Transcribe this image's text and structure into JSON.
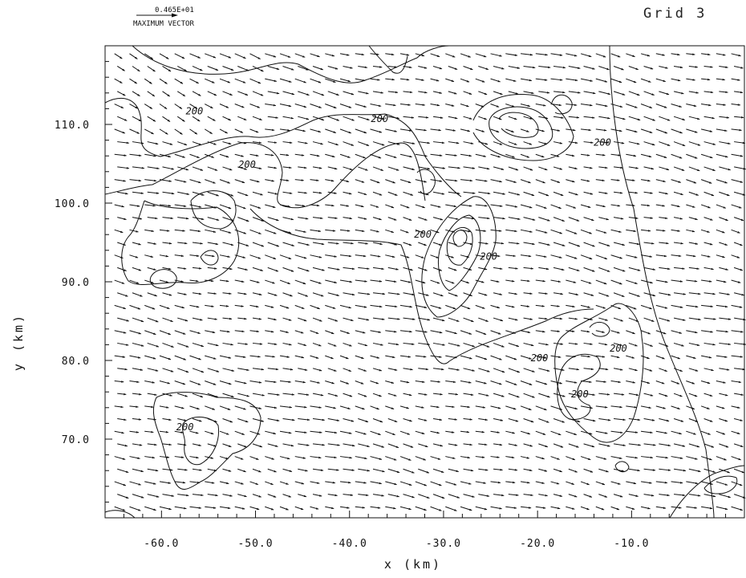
{
  "header": {
    "max_vector_value": "0.465E+01",
    "max_vector_label": "MAXIMUM VECTOR",
    "grid_label": "Grid 3"
  },
  "chart_data": {
    "type": "vector-contour",
    "title": "Grid 3",
    "xlabel": "x (km)",
    "ylabel": "y (km)",
    "xlim": [
      -66,
      2
    ],
    "ylim": [
      60,
      120
    ],
    "x_ticks": [
      -60,
      -50,
      -40,
      -30,
      -20,
      -10
    ],
    "x_tick_labels": [
      "-60.0",
      "-50.0",
      "-40.0",
      "-30.0",
      "-20.0",
      "-10.0"
    ],
    "y_ticks": [
      70,
      80,
      90,
      100,
      110
    ],
    "y_tick_labels": [
      "70.0",
      "80.0",
      "90.0",
      "100.0",
      "110.0"
    ],
    "grid": false,
    "max_vector_magnitude": 4.65,
    "contour_label_value": "200",
    "contour_labels": [
      {
        "text": "200",
        "x": -56.5,
        "y": 111.3
      },
      {
        "text": "200",
        "x": -50.9,
        "y": 104.5
      },
      {
        "text": "200",
        "x": -36.8,
        "y": 110.3
      },
      {
        "text": "200",
        "x": -32.2,
        "y": 95.6
      },
      {
        "text": "200",
        "x": -25.2,
        "y": 92.8
      },
      {
        "text": "200",
        "x": -13.1,
        "y": 107.3
      },
      {
        "text": "200",
        "x": -11.4,
        "y": 81.1
      },
      {
        "text": "200",
        "x": -15.5,
        "y": 75.3
      },
      {
        "text": "200",
        "x": -19.8,
        "y": 79.9
      },
      {
        "text": "200",
        "x": -57.5,
        "y": 71.1
      }
    ],
    "vector_field": {
      "x_spacing_km": 1.6,
      "y_spacing_km": 1.6,
      "dominant_direction": "eastward, slightly southward"
    }
  }
}
